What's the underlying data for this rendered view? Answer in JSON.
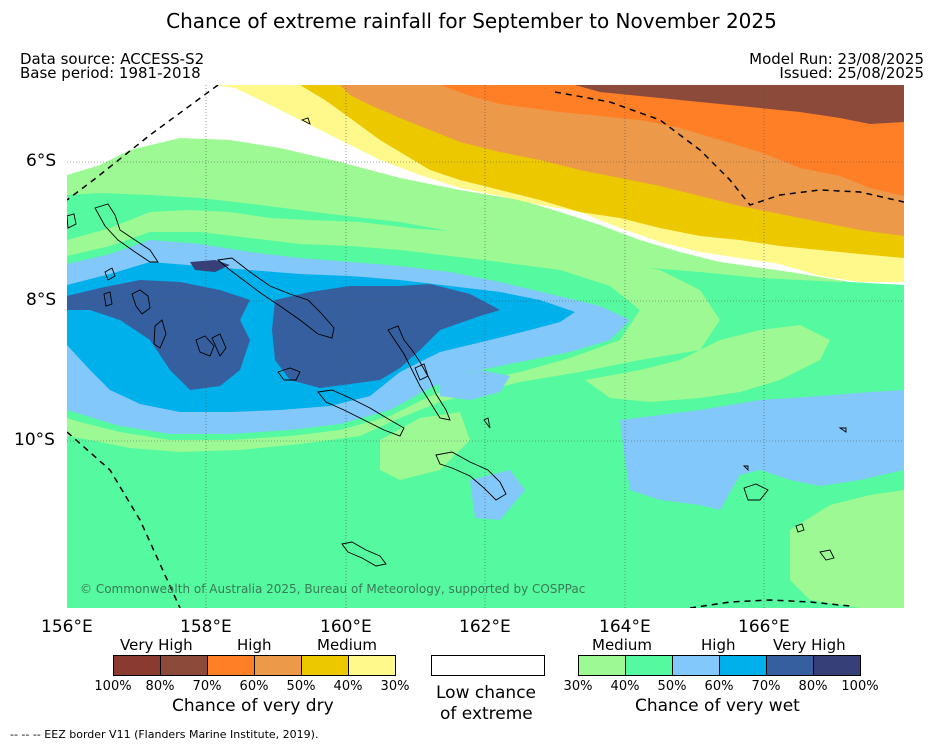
{
  "title": "Chance of extreme rainfall for September to November 2025",
  "header": {
    "data_source": "Data source: ACCESS-S2",
    "base_period": "Base period: 1981-2018",
    "model_run": "Model Run: 23/08/2025",
    "issued": "Issued: 25/08/2025"
  },
  "map": {
    "lat_labels": [
      "6°S",
      "8°S",
      "10°S"
    ],
    "lon_labels": [
      "156°E",
      "158°E",
      "160°E",
      "162°E",
      "164°E",
      "166°E"
    ],
    "copyright": "© Commonwealth of Australia 2025, Bureau of Meteorology, supported by COSPPac"
  },
  "legend": {
    "dry": {
      "groups": [
        "Very High",
        "High",
        "Medium"
      ],
      "colors": [
        "#8b3a32",
        "#8b4a3a",
        "#ff7f27",
        "#ec994a",
        "#ebc800",
        "#fff88a"
      ],
      "ticks": [
        "100%",
        "80%",
        "70%",
        "60%",
        "50%",
        "40%",
        "30%"
      ],
      "caption": "Chance of very dry"
    },
    "neutral": {
      "color": "#ffffff",
      "caption_line1": "Low chance",
      "caption_line2": "of extreme"
    },
    "wet": {
      "groups": [
        "Medium",
        "High",
        "Very High"
      ],
      "colors": [
        "#9cf993",
        "#55f99f",
        "#82c8fa",
        "#00b0ea",
        "#365f9f",
        "#363f78"
      ],
      "ticks": [
        "30%",
        "40%",
        "50%",
        "60%",
        "70%",
        "80%",
        "100%"
      ],
      "caption": "Chance of very wet"
    }
  },
  "footnote": "--  --  -- EEZ border V11 (Flanders Marine Institute, 2019)."
}
